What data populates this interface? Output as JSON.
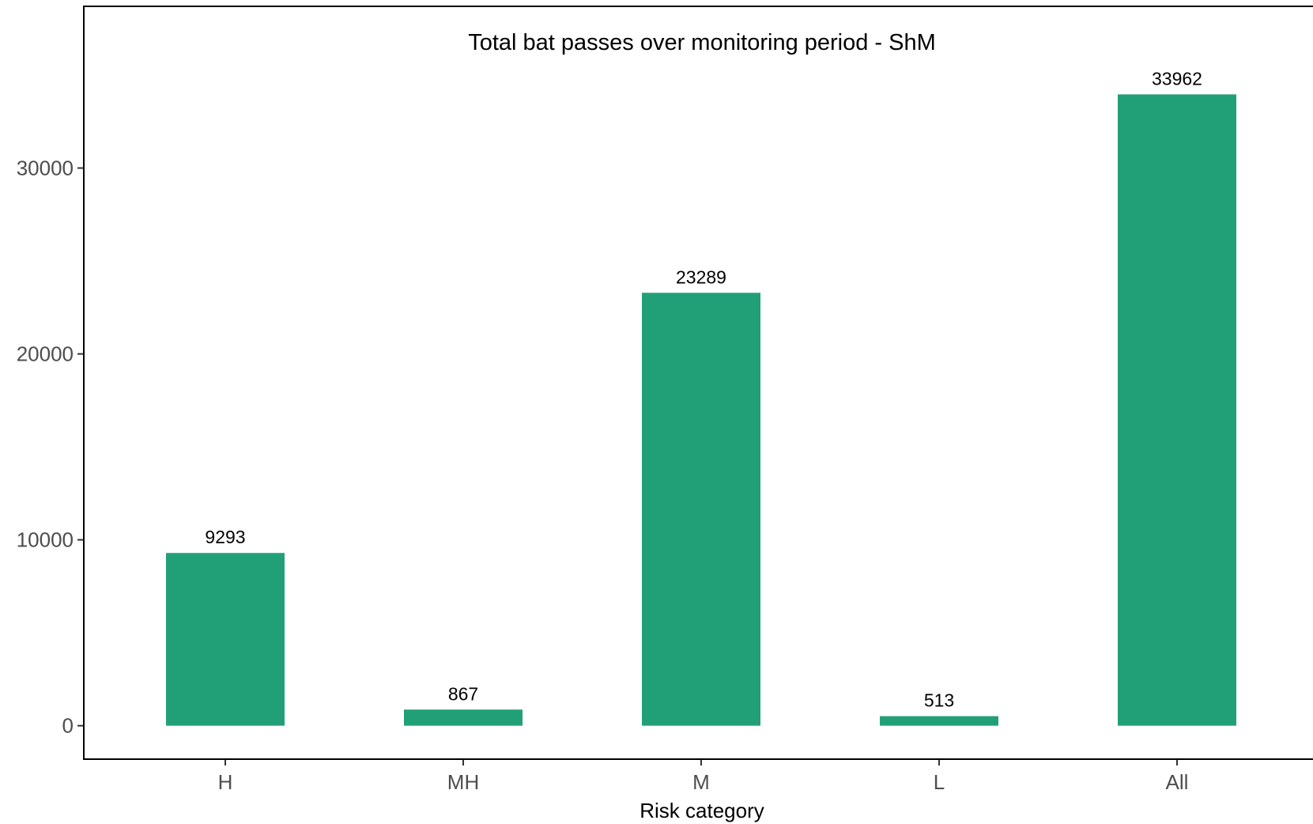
{
  "chart_data": {
    "type": "bar",
    "title": "Total bat passes over monitoring period - ShM",
    "xlabel": "Risk category",
    "ylabel": "",
    "categories": [
      "H",
      "MH",
      "M",
      "L",
      "All"
    ],
    "values": [
      9293,
      867,
      23289,
      513,
      33962
    ],
    "value_labels": [
      "9293",
      "867",
      "23289",
      "513",
      "33962"
    ],
    "ylim": [
      -1800,
      38700
    ],
    "yticks": [
      0,
      10000,
      20000,
      30000
    ],
    "ytick_labels": [
      "0",
      "10000",
      "20000",
      "30000"
    ],
    "bar_color": "#21a078",
    "grid": false,
    "legend": "none"
  }
}
